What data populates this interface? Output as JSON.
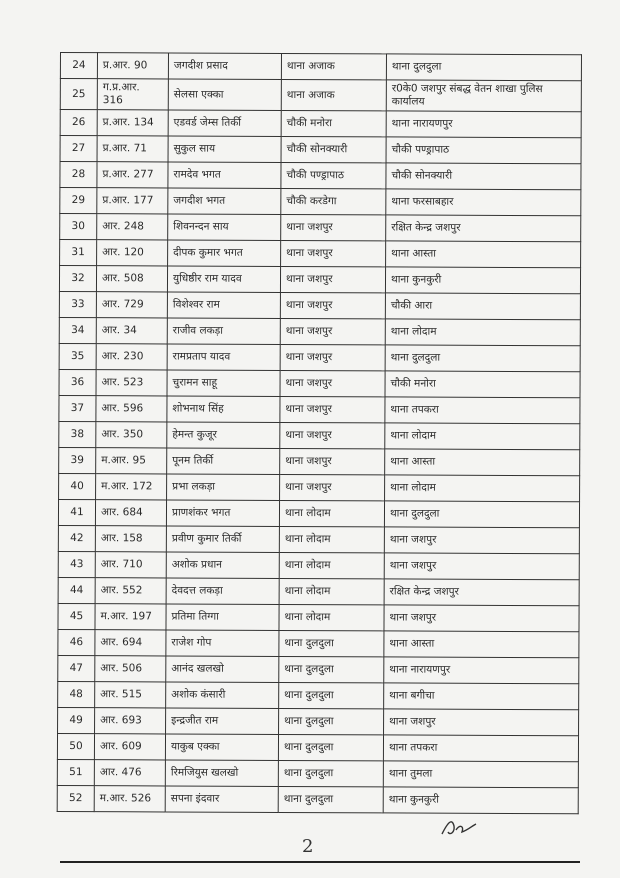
{
  "table": {
    "rows": [
      [
        "24",
        "प्र.आर. 90",
        "जगदीश प्रसाद",
        "थाना अजाक",
        "थाना दुलदुला"
      ],
      [
        "25",
        "ग.प्र.आर. 316",
        "सेलसा एक्का",
        "थाना अजाक",
        "र0के0 जशपुर संबद्ध वेतन शाखा पुलिस कार्यालय"
      ],
      [
        "26",
        "प्र.आर. 134",
        "एडवर्ड जेम्स तिर्की",
        "चौकी मनोरा",
        "थाना नारायणपुर"
      ],
      [
        "27",
        "प्र.आर. 71",
        "सुकुल साय",
        "चौकी सोनक्यारी",
        "चौकी पण्ड्रापाठ"
      ],
      [
        "28",
        "प्र.आर. 277",
        "रामदेव भगत",
        "चौकी पण्ड्रापाठ",
        "चौकी सोनक्यारी"
      ],
      [
        "29",
        "प्र.आर. 177",
        "जगदीश भगत",
        "चौकी करडेगा",
        "थाना फरसाबहार"
      ],
      [
        "30",
        "आर. 248",
        "शिवनन्दन साय",
        "थाना जशपुर",
        "रक्षित केन्द्र जशपुर"
      ],
      [
        "31",
        "आर. 120",
        "दीपक कुमार भगत",
        "थाना जशपुर",
        "थाना आस्ता"
      ],
      [
        "32",
        "आर. 508",
        "युधिष्ठीर राम यादव",
        "थाना जशपुर",
        "थाना कुनकुरी"
      ],
      [
        "33",
        "आर. 729",
        "विशेश्वर राम",
        "थाना जशपुर",
        "चौकी आरा"
      ],
      [
        "34",
        "आर. 34",
        "राजीव लकड़ा",
        "थाना जशपुर",
        "थाना लोदाम"
      ],
      [
        "35",
        "आर. 230",
        "रामप्रताप यादव",
        "थाना जशपुर",
        "थाना दुलदुला"
      ],
      [
        "36",
        "आर. 523",
        "चुरामन साहू",
        "थाना जशपुर",
        "चौकी मनोरा"
      ],
      [
        "37",
        "आर. 596",
        "शोभनाथ सिंह",
        "थाना जशपुर",
        "थाना तपकरा"
      ],
      [
        "38",
        "आर. 350",
        "हेमन्त कुजूर",
        "थाना जशपुर",
        "थाना लोदाम"
      ],
      [
        "39",
        "म.आर. 95",
        "पूनम तिर्की",
        "थाना जशपुर",
        "थाना आस्ता"
      ],
      [
        "40",
        "म.आर. 172",
        "प्रभा लकड़ा",
        "थाना जशपुर",
        "थाना लोदाम"
      ],
      [
        "41",
        "आर. 684",
        "प्राणशंकर भगत",
        "थाना लोदाम",
        "थाना दुलदुला"
      ],
      [
        "42",
        "आर. 158",
        "प्रवीण कुमार तिर्की",
        "थाना लोदाम",
        "थाना जशपुर"
      ],
      [
        "43",
        "आर. 710",
        "अशोक प्रधान",
        "थाना लोदाम",
        "थाना जशपुर"
      ],
      [
        "44",
        "आर. 552",
        "देवदत्त लकड़ा",
        "थाना लोदाम",
        "रक्षित केन्द्र जशपुर"
      ],
      [
        "45",
        "म.आर. 197",
        "प्रतिमा तिग्गा",
        "थाना लोदाम",
        "थाना जशपुर"
      ],
      [
        "46",
        "आर. 694",
        "राजेश गोप",
        "थाना दुलदुला",
        "थाना आस्ता"
      ],
      [
        "47",
        "आर. 506",
        "आनंद खलखो",
        "थाना दुलदुला",
        "थाना नारायणपुर"
      ],
      [
        "48",
        "आर. 515",
        "अशोक कंसारी",
        "थाना दुलदुला",
        "थाना बगीचा"
      ],
      [
        "49",
        "आर. 693",
        "इन्द्रजीत राम",
        "थाना दुलदुला",
        "थाना जशपुर"
      ],
      [
        "50",
        "आर. 609",
        "याकुब एक्का",
        "थाना दुलदुला",
        "थाना तपकरा"
      ],
      [
        "51",
        "आर. 476",
        "रिमजियुस खलखो",
        "थाना दुलदुला",
        "थाना तुमला"
      ],
      [
        "52",
        "म.आर. 526",
        "सपना इंदवार",
        "थाना दुलदुला",
        "थाना कुनकुरी"
      ]
    ]
  },
  "footer": {
    "page_number": "2",
    "signature_icon": "handwritten-signature"
  }
}
